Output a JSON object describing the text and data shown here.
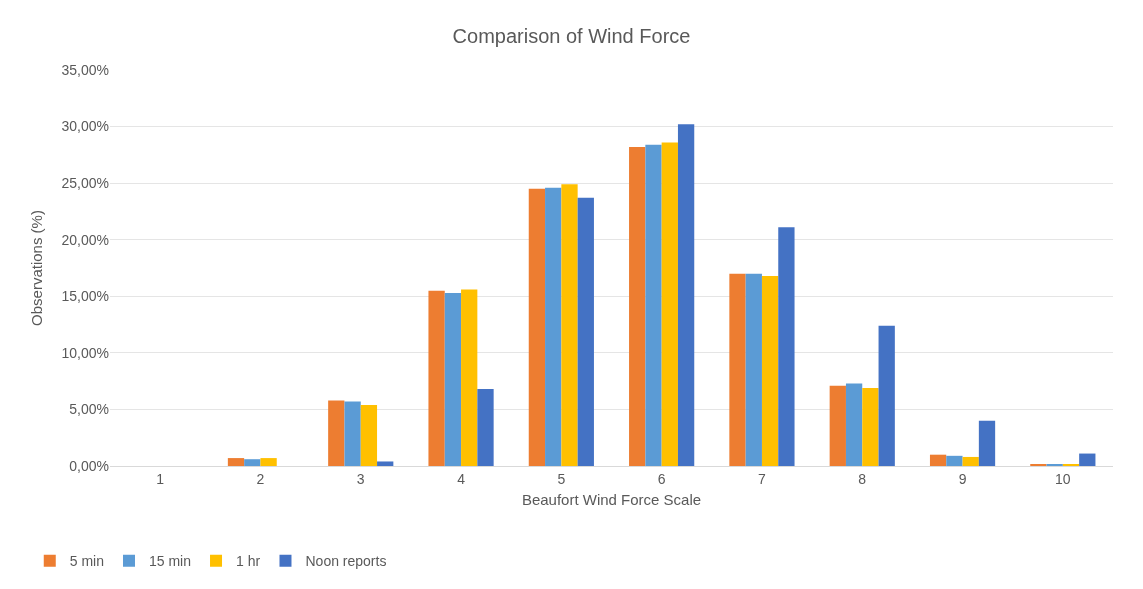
{
  "chart_data": {
    "type": "bar",
    "title": "Comparison of Wind Force",
    "xlabel": "Beaufort Wind Force Scale",
    "ylabel": "Observations (%)",
    "categories": [
      "1",
      "2",
      "3",
      "4",
      "5",
      "6",
      "7",
      "8",
      "9",
      "10"
    ],
    "series": [
      {
        "name": "5 min",
        "color": "#ed7d31",
        "values": [
          0,
          0.7,
          5.8,
          15.5,
          24.5,
          28.2,
          17.0,
          7.1,
          1.0,
          0.1
        ]
      },
      {
        "name": "15 min",
        "color": "#5b9bd5",
        "values": [
          0,
          0.6,
          5.7,
          15.3,
          24.6,
          28.4,
          17.0,
          7.3,
          0.9,
          0.1
        ]
      },
      {
        "name": "1 hr",
        "color": "#ffc000",
        "values": [
          0,
          0.7,
          5.4,
          15.6,
          24.9,
          28.6,
          16.8,
          6.9,
          0.8,
          0.1
        ]
      },
      {
        "name": "Noon reports",
        "color": "#4472c4",
        "values": [
          0,
          0,
          0.4,
          6.8,
          23.7,
          30.2,
          21.1,
          12.4,
          4.0,
          1.1
        ]
      }
    ],
    "ylim": [
      0,
      35
    ],
    "yticks": [
      {
        "value": 0,
        "label": "0,00%"
      },
      {
        "value": 5,
        "label": "5,00%"
      },
      {
        "value": 10,
        "label": "10,00%"
      },
      {
        "value": 15,
        "label": "15,00%"
      },
      {
        "value": 20,
        "label": "20,00%"
      },
      {
        "value": 25,
        "label": "25,00%"
      },
      {
        "value": 30,
        "label": "30,00%"
      },
      {
        "value": 35,
        "label": "35,00%"
      }
    ],
    "grid": "y",
    "legend": "bottom left"
  }
}
